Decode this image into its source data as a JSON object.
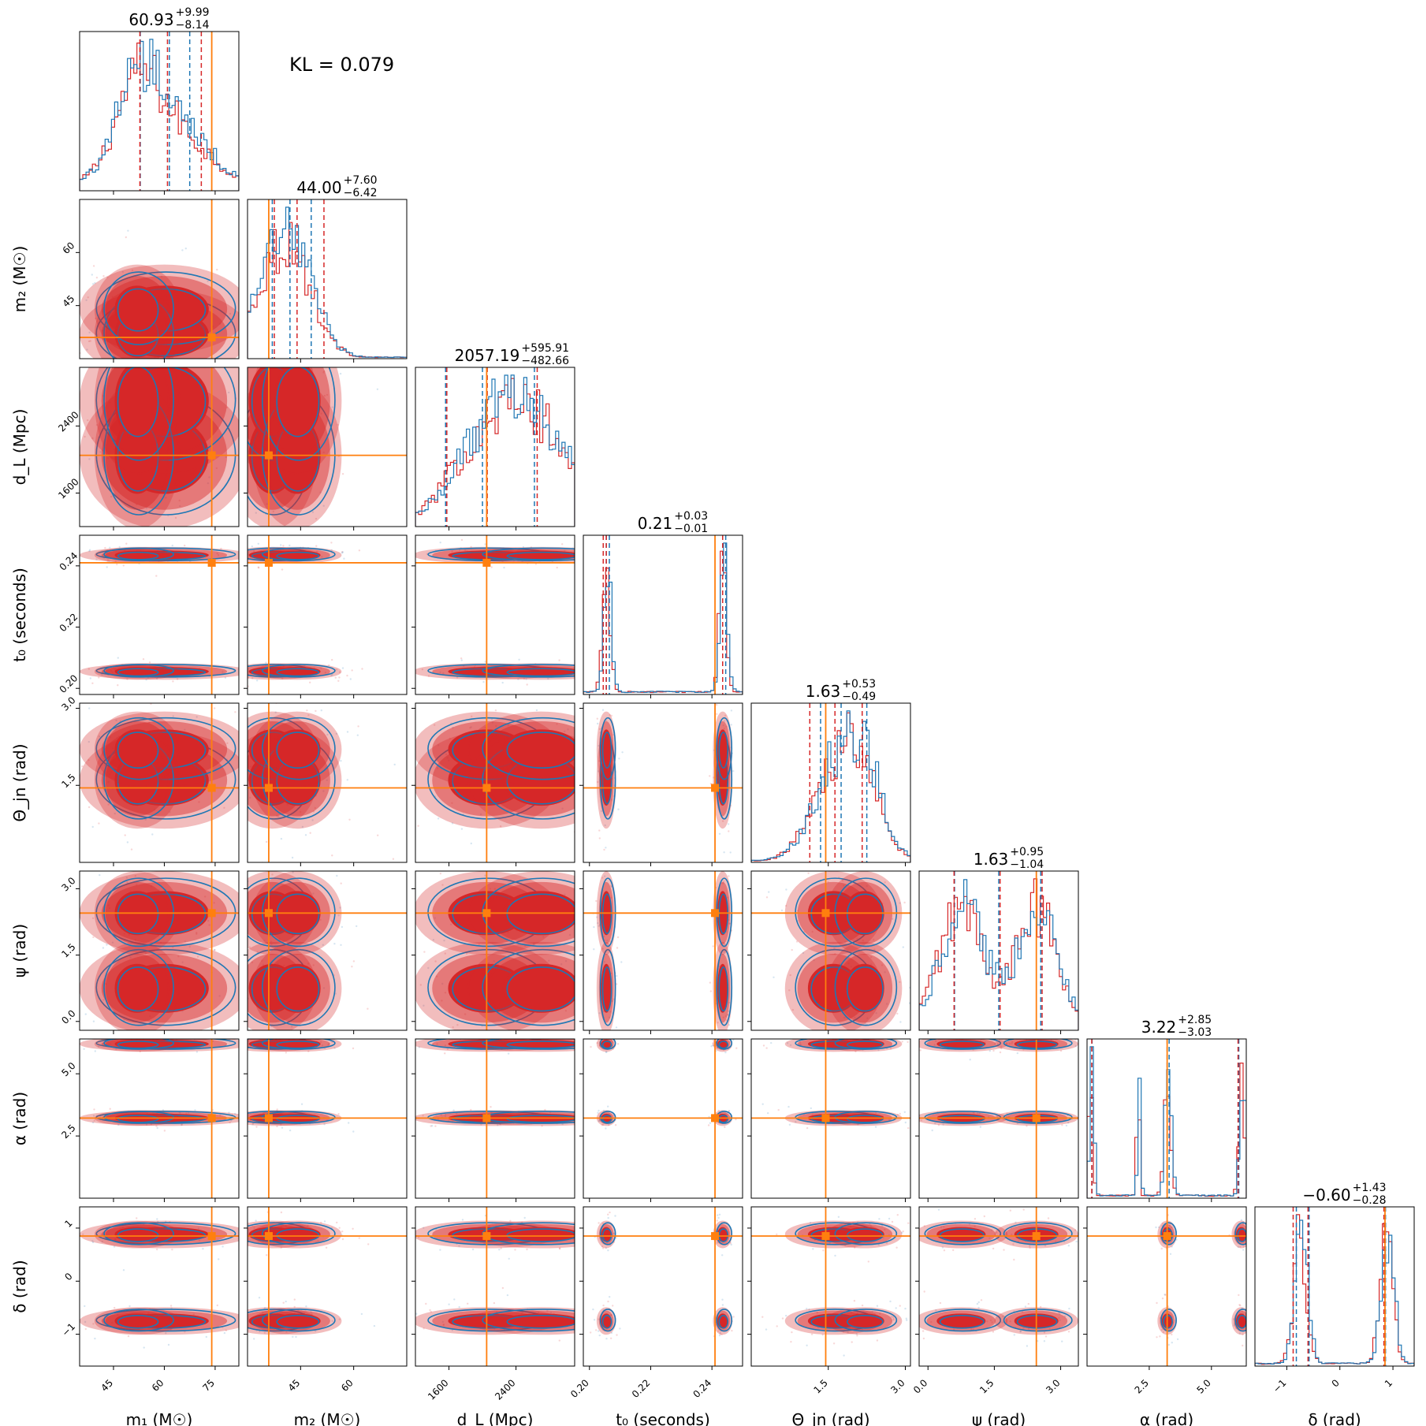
{
  "chart_data": {
    "type": "corner",
    "kl_text": "KL = 0.079",
    "colors": {
      "model": "#d62728",
      "reference": "#1f77b4",
      "truth": "#ff7f0e"
    },
    "parameters": [
      {
        "id": "m1",
        "label": "m₁ (M☉)",
        "range": [
          35,
          82
        ],
        "ticks": [
          45,
          60,
          75
        ],
        "tick_labels": [
          "45",
          "60",
          "75"
        ],
        "truth": 74,
        "hist_peaks": [
          [
            60,
            12
          ],
          [
            52,
            6
          ]
        ],
        "title_main": "60.93",
        "title_up": "+9.99",
        "title_down": "−8.14",
        "quantiles_model": [
          52.79,
          60.93,
          70.92
        ],
        "quantiles_ref": [
          52.9,
          61.5,
          67.5
        ]
      },
      {
        "id": "m2",
        "label": "m₂ (M☉)",
        "range": [
          30,
          75
        ],
        "ticks": [
          45,
          60
        ],
        "tick_labels": [
          "45",
          "60"
        ],
        "truth": 36,
        "hist_peaks": [
          [
            37,
            6
          ],
          [
            44,
            6
          ]
        ],
        "title_main": "44.00",
        "title_up": "+7.60",
        "title_down": "−6.42",
        "quantiles_model": [
          37.58,
          44.0,
          51.6
        ],
        "quantiles_ref": [
          37.0,
          42.0,
          48.0
        ]
      },
      {
        "id": "dL",
        "label": "d_L (Mpc)",
        "range": [
          1200,
          3100
        ],
        "ticks": [
          1600,
          2400
        ],
        "tick_labels": [
          "1600",
          "2400"
        ],
        "truth": 2050,
        "hist_peaks": [
          [
            2050,
            420
          ],
          [
            2700,
            420
          ]
        ],
        "title_main": "2057.19",
        "title_up": "+595.91",
        "title_down": "−482.66",
        "quantiles_model": [
          1574.53,
          2057.19,
          2653.1
        ],
        "quantiles_ref": [
          1560,
          2000,
          2620
        ]
      },
      {
        "id": "t0",
        "label": "t₀ (seconds)",
        "range": [
          0.198,
          0.25
        ],
        "ticks": [
          0.2,
          0.22,
          0.24
        ],
        "tick_labels": [
          "0.20",
          "0.22",
          "0.24"
        ],
        "truth": 0.241,
        "hist_peaks": [
          [
            0.2055,
            0.0012
          ],
          [
            0.2435,
            0.0012
          ]
        ],
        "title_main": "0.21",
        "title_up": "+0.03",
        "title_down": "−0.01",
        "quantiles_model": [
          0.2045,
          0.2055,
          0.2435
        ],
        "quantiles_ref": [
          0.2055,
          0.2065,
          0.2445
        ]
      },
      {
        "id": "theta",
        "label": "Θ_jn (rad)",
        "range": [
          0,
          3.1
        ],
        "ticks": [
          1.5,
          3.0
        ],
        "tick_labels": [
          "1.5",
          "3.0"
        ],
        "truth": 1.45,
        "hist_peaks": [
          [
            1.6,
            0.45
          ],
          [
            2.2,
            0.35
          ]
        ],
        "title_main": "1.63",
        "title_up": "+0.53",
        "title_down": "−0.49",
        "quantiles_model": [
          1.14,
          1.63,
          2.16
        ],
        "quantiles_ref": [
          1.35,
          1.75,
          2.25
        ]
      },
      {
        "id": "psi",
        "label": "ψ (rad)",
        "range": [
          -0.2,
          3.4
        ],
        "ticks": [
          0.0,
          1.5,
          3.0
        ],
        "tick_labels": [
          "0.0",
          "1.5",
          "3.0"
        ],
        "truth": 2.45,
        "hist_peaks": [
          [
            0.75,
            0.5
          ],
          [
            2.45,
            0.45
          ]
        ],
        "title_main": "1.63",
        "title_up": "+0.95",
        "title_down": "−1.04",
        "quantiles_model": [
          0.59,
          1.63,
          2.58
        ],
        "quantiles_ref": [
          0.6,
          1.6,
          2.55
        ]
      },
      {
        "id": "alpha",
        "label": "α (rad)",
        "range": [
          0,
          6.4
        ],
        "ticks": [
          2.5,
          5.0
        ],
        "tick_labels": [
          "2.5",
          "5.0"
        ],
        "truth": 3.22,
        "hist_peaks": [
          [
            3.22,
            0.12
          ],
          [
            6.2,
            0.1
          ],
          [
            0.15,
            0.08
          ],
          [
            2.05,
            0.06
          ]
        ],
        "title_main": "3.22",
        "title_up": "+2.85",
        "title_down": "−3.03",
        "quantiles_model": [
          0.19,
          3.22,
          6.07
        ],
        "quantiles_ref": [
          0.2,
          3.3,
          6.1
        ]
      },
      {
        "id": "delta",
        "label": "δ (rad)",
        "range": [
          -1.6,
          1.4
        ],
        "ticks": [
          -1,
          0,
          1
        ],
        "tick_labels": [
          "−1",
          "0",
          "1"
        ],
        "truth": 0.85,
        "hist_peaks": [
          [
            -0.75,
            0.12
          ],
          [
            0.88,
            0.12
          ]
        ],
        "title_main": "−0.60",
        "title_up": "+1.43",
        "title_down": "−0.28",
        "quantiles_model": [
          -0.88,
          -0.6,
          0.83
        ],
        "quantiles_ref": [
          -0.82,
          -0.58,
          0.86
        ]
      }
    ]
  }
}
